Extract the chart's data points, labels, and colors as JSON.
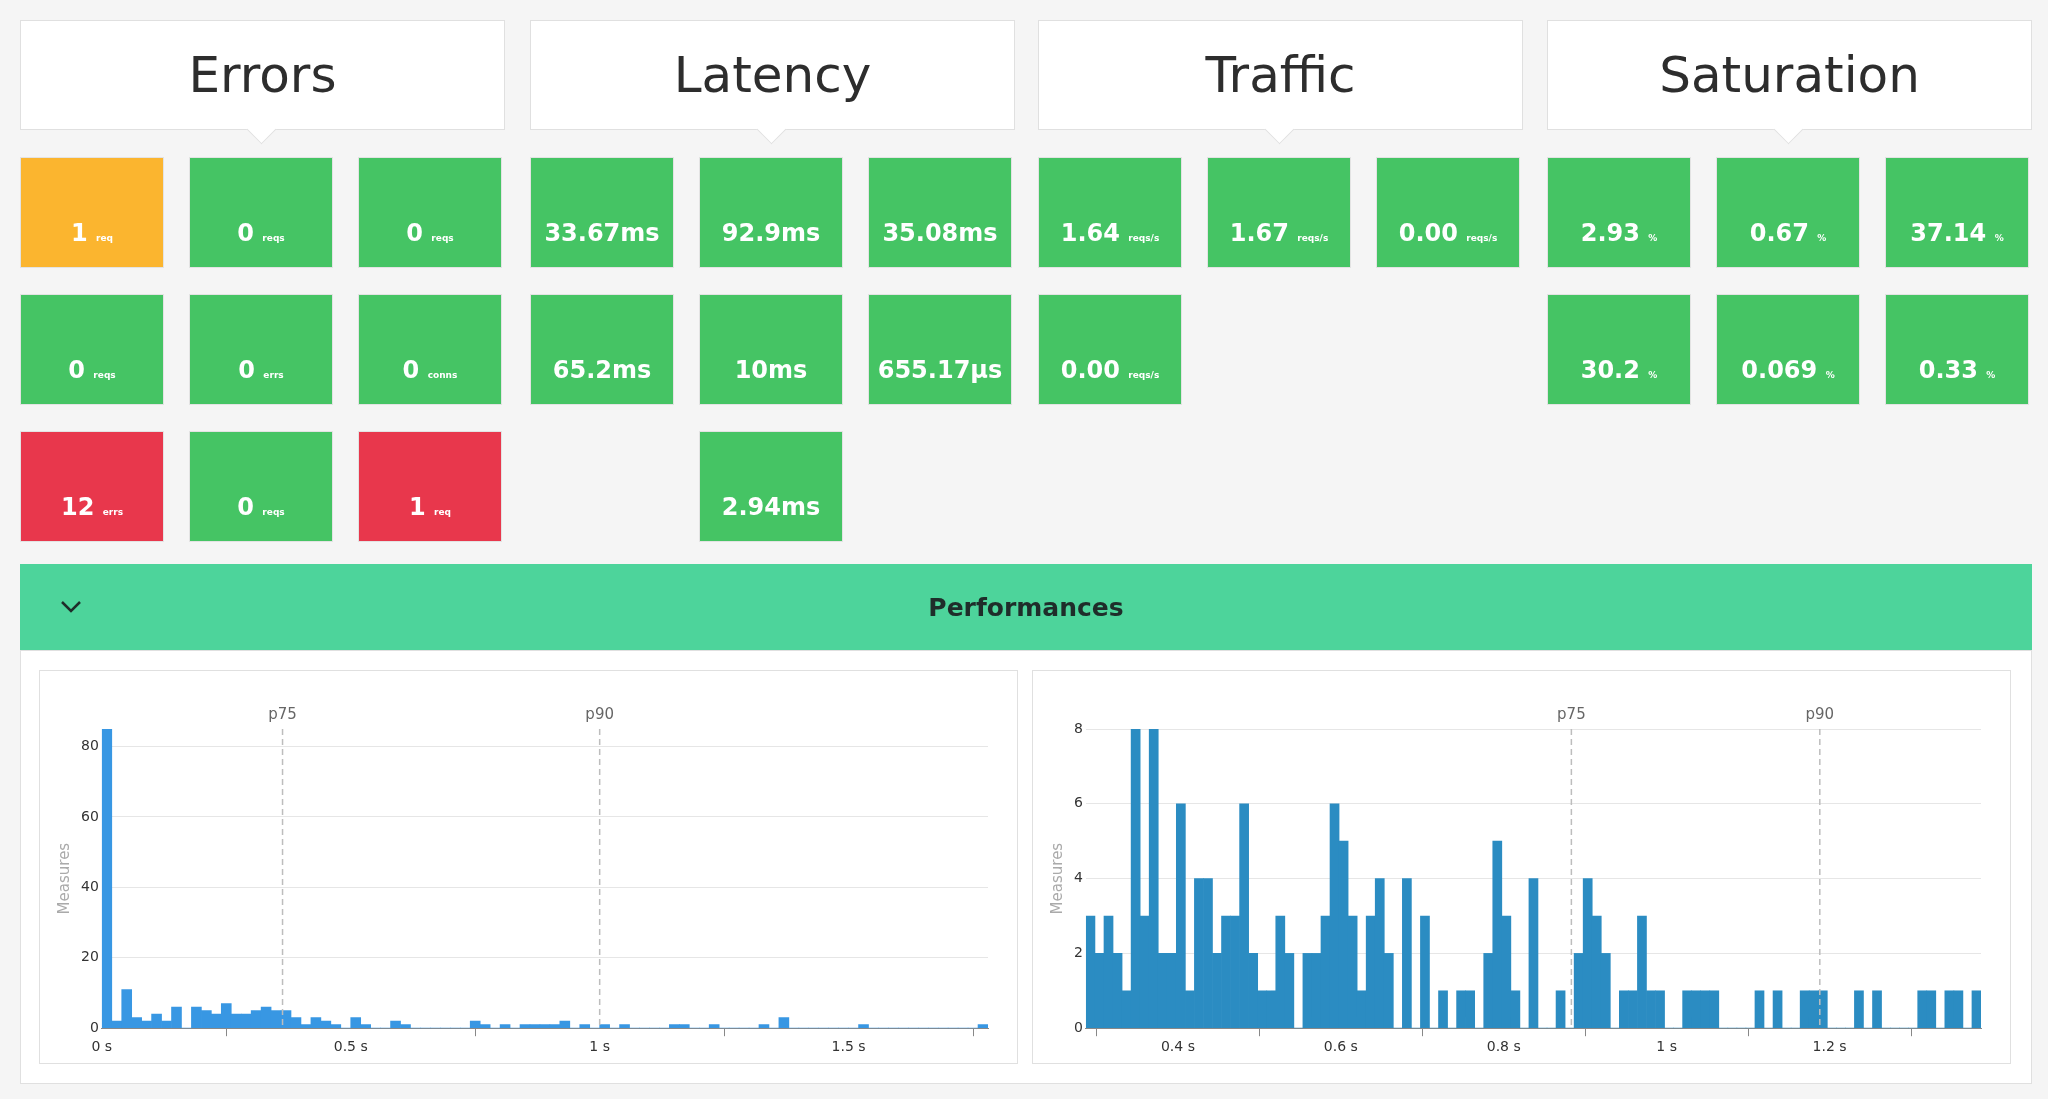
{
  "chart_data": [
    {
      "type": "other",
      "title": "Errors",
      "annotations": [
        "1 req",
        "0 reqs",
        "0 reqs",
        "0 reqs",
        "0 errs",
        "0 conns",
        "12 errs",
        "0 reqs",
        "1 req"
      ],
      "colors": [
        "#fbb52f",
        "#45c464",
        "#45c464",
        "#45c464",
        "#45c464",
        "#45c464",
        "#e8374c",
        "#45c464",
        "#e8374c"
      ]
    },
    {
      "type": "other",
      "title": "Latency",
      "annotations": [
        "33.67ms",
        "92.9ms",
        "35.08ms",
        "65.2ms",
        "10ms",
        "655.17µs",
        null,
        "2.94ms",
        null
      ],
      "colors": [
        "#45c464",
        "#45c464",
        "#45c464",
        "#45c464",
        "#45c464",
        "#45c464",
        null,
        "#45c464",
        null
      ]
    },
    {
      "type": "other",
      "title": "Traffic",
      "annotations": [
        "1.64 reqs/s",
        "1.67 reqs/s",
        "0.00 reqs/s",
        "0.00 reqs/s"
      ],
      "colors": [
        "#45c464",
        "#45c464",
        "#45c464",
        "#45c464"
      ]
    },
    {
      "type": "other",
      "title": "Saturation",
      "annotations": [
        "2.93 %",
        "0.67 %",
        "37.14 %",
        "30.2 %",
        "0.069 %",
        "0.33 %"
      ],
      "colors": [
        "#45c464",
        "#45c464",
        "#45c464",
        "#45c464",
        "#45c464",
        "#45c464"
      ]
    },
    {
      "type": "other",
      "title": "Performances"
    },
    {
      "type": "histogram",
      "ylabel": "Measures",
      "color": "#3897e3",
      "grid": "y",
      "legend": false,
      "bins": [
        0,
        0.02,
        0.04,
        0.06,
        0.08,
        0.1,
        0.12,
        0.14,
        0.16,
        0.18,
        0.2,
        0.22,
        0.24,
        0.26,
        0.28,
        0.3,
        0.32,
        0.34,
        0.36,
        0.38,
        0.4,
        0.42,
        0.44,
        0.46,
        0.48,
        0.5,
        0.52,
        0.54,
        0.56,
        0.58,
        0.6,
        0.62,
        0.64,
        0.66,
        0.68,
        0.7,
        0.72,
        0.74,
        0.76,
        0.78,
        0.8,
        0.82,
        0.84,
        0.86,
        0.88,
        0.9,
        0.92,
        0.94,
        0.96,
        0.98,
        1,
        1.02,
        1.04,
        1.06,
        1.08,
        1.1,
        1.12,
        1.14,
        1.16,
        1.18,
        1.2,
        1.22,
        1.24,
        1.26,
        1.28,
        1.3,
        1.32,
        1.34,
        1.36,
        1.38,
        1.4,
        1.42,
        1.44,
        1.46,
        1.48,
        1.5,
        1.52,
        1.54,
        1.56,
        1.58,
        1.6,
        1.62,
        1.64,
        1.66,
        1.68,
        1.7,
        1.72,
        1.74,
        1.76,
        1.78
      ],
      "values": [
        85,
        2,
        11,
        3,
        2,
        4,
        2,
        6,
        0,
        6,
        5,
        4,
        7,
        4,
        4,
        5,
        6,
        5,
        5,
        3,
        1,
        3,
        2,
        1,
        0,
        3,
        1,
        0,
        0,
        2,
        1,
        0,
        0,
        0,
        0,
        0,
        0,
        2,
        1,
        0,
        1,
        0,
        1,
        1,
        1,
        1,
        2,
        0,
        1,
        0,
        1,
        0,
        1,
        0,
        0,
        0,
        0,
        1,
        1,
        0,
        0,
        1,
        0,
        0,
        0,
        0,
        1,
        0,
        3,
        0,
        0,
        0,
        0,
        0,
        0,
        0,
        1,
        0,
        0,
        0,
        0,
        0,
        0,
        0,
        0,
        0,
        0,
        0,
        1
      ],
      "xlim": [
        0,
        1.78
      ],
      "xticks": [
        {
          "value": 0,
          "label": "0 s"
        },
        {
          "value": 0.5,
          "label": "0.5 s"
        },
        {
          "value": 1,
          "label": "1 s"
        },
        {
          "value": 1.5,
          "label": "1.5 s"
        }
      ],
      "ylim": [
        0,
        85
      ],
      "yticks": [
        0,
        20,
        40,
        60,
        80
      ],
      "ref_lines": [
        {
          "axis": "x",
          "value": 0.363,
          "label": "p75",
          "line_style": "dashed"
        },
        {
          "axis": "x",
          "value": 1.0,
          "label": "p90",
          "line_style": "dashed"
        }
      ]
    },
    {
      "type": "histogram",
      "ylabel": "Measures",
      "color": "#2b8cc2",
      "grid": "y",
      "legend": false,
      "bins": [
        0.287,
        0.2981,
        0.3092,
        0.3203,
        0.3314,
        0.3425,
        0.3536,
        0.3647,
        0.3758,
        0.3869,
        0.398,
        0.4091,
        0.4202,
        0.4313,
        0.4424,
        0.4535,
        0.4646,
        0.4757,
        0.4868,
        0.4979,
        0.509,
        0.5201,
        0.5312,
        0.5423,
        0.5534,
        0.5645,
        0.5756,
        0.5867,
        0.5978,
        0.6089,
        0.62,
        0.6311,
        0.6422,
        0.6533,
        0.6644,
        0.6755,
        0.6866,
        0.6977,
        0.7088,
        0.7199,
        0.731,
        0.7421,
        0.7532,
        0.7643,
        0.7754,
        0.7865,
        0.7976,
        0.8087,
        0.8198,
        0.8309,
        0.842,
        0.8531,
        0.8642,
        0.8753,
        0.8864,
        0.8975,
        0.9086,
        0.9197,
        0.9308,
        0.9419,
        0.953,
        0.9641,
        0.9752,
        0.9863,
        0.9974,
        1.0085,
        1.0196,
        1.0307,
        1.0418,
        1.0529,
        1.064,
        1.0751,
        1.0862,
        1.0973,
        1.1084,
        1.1195,
        1.1306,
        1.1417,
        1.1528,
        1.1639,
        1.175,
        1.1861,
        1.1972,
        1.2083,
        1.2194,
        1.2305,
        1.2416,
        1.2527,
        1.2638,
        1.2749,
        1.286,
        1.2971,
        1.3082,
        1.3193,
        1.3304,
        1.3415,
        1.3526,
        1.3637,
        1.3748,
        1.3859
      ],
      "values": [
        3,
        2,
        3,
        2,
        1,
        8,
        3,
        8,
        2,
        2,
        6,
        1,
        4,
        4,
        2,
        3,
        3,
        6,
        2,
        1,
        1,
        3,
        2,
        0,
        2,
        2,
        3,
        6,
        5,
        3,
        1,
        3,
        4,
        2,
        0,
        4,
        0,
        3,
        0,
        1,
        0,
        1,
        1,
        0,
        2,
        5,
        3,
        1,
        0,
        4,
        0,
        0,
        1,
        0,
        2,
        4,
        3,
        2,
        0,
        1,
        1,
        3,
        1,
        1,
        0,
        0,
        1,
        1,
        1,
        1,
        0,
        0,
        0,
        0,
        1,
        0,
        1,
        0,
        0,
        1,
        1,
        1,
        0,
        0,
        0,
        1,
        0,
        1,
        0,
        0,
        0,
        0,
        1,
        1,
        0,
        1,
        1,
        0,
        1
      ],
      "xlim": [
        0.287,
        1.3859
      ],
      "xticks": [
        {
          "value": 0.4,
          "label": "0.4 s"
        },
        {
          "value": 0.6,
          "label": "0.6 s"
        },
        {
          "value": 0.8,
          "label": "0.8 s"
        },
        {
          "value": 1,
          "label": "1 s"
        },
        {
          "value": 1.2,
          "label": "1.2 s"
        }
      ],
      "ylim": [
        0,
        8
      ],
      "yticks": [
        0,
        2,
        4,
        6,
        8
      ],
      "ref_lines": [
        {
          "axis": "x",
          "value": 0.883,
          "label": "p75",
          "line_style": "dashed"
        },
        {
          "axis": "x",
          "value": 1.188,
          "label": "p90",
          "line_style": "dashed"
        }
      ]
    }
  ]
}
